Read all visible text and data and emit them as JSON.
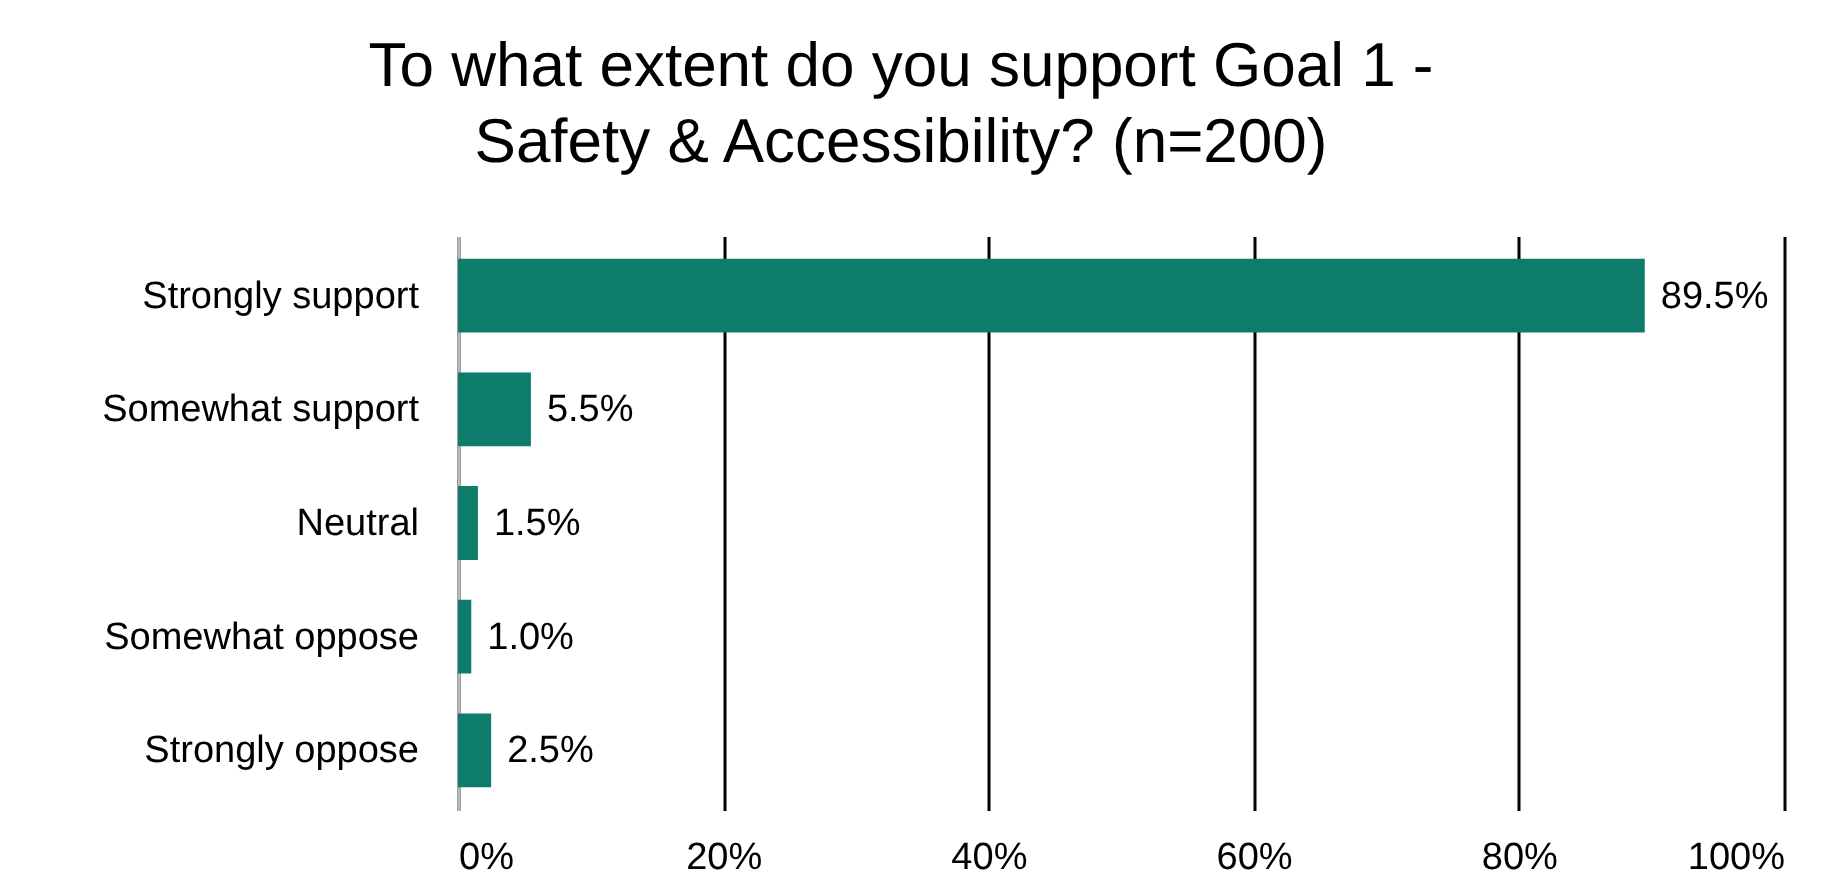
{
  "chart_data": {
    "type": "bar",
    "orientation": "horizontal",
    "title": "To what extent do you support Goal 1 - Safety & Accessibility? (n=200)",
    "categories": [
      "Strongly support",
      "Somewhat support",
      "Neutral",
      "Somewhat oppose",
      "Strongly oppose"
    ],
    "values": [
      89.5,
      5.5,
      1.5,
      1.0,
      2.5
    ],
    "color": "#0e7c6b",
    "value_labels": [
      "89.5%",
      "5.5%",
      "1.5%",
      "1.0%",
      "2.5%"
    ],
    "xlim": [
      0,
      100
    ],
    "xticks": [
      {
        "value": 0,
        "label": "0%"
      },
      {
        "value": 20,
        "label": "20%"
      },
      {
        "value": 40,
        "label": "40%"
      },
      {
        "value": 60,
        "label": "60%"
      },
      {
        "value": 80,
        "label": "80%"
      },
      {
        "value": 100,
        "label": "100%"
      }
    ],
    "grid": "x"
  }
}
